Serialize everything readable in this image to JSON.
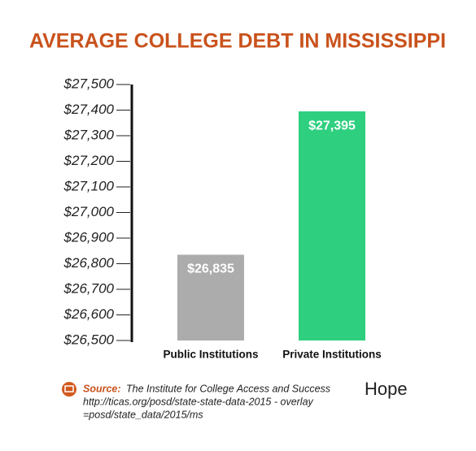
{
  "chart_data": {
    "type": "bar",
    "title": "AVERAGE COLLEGE DEBT IN MISSISSIPPI",
    "categories": [
      "Public Institutions",
      "Private Institutions"
    ],
    "values": [
      26835,
      27395
    ],
    "value_labels": [
      "$26,835",
      "$27,395"
    ],
    "colors": [
      "#acacac",
      "#2ecf7f"
    ],
    "ylim": [
      26500,
      27500
    ],
    "yticks": [
      {
        "value": 26500,
        "label": "$26,500"
      },
      {
        "value": 26600,
        "label": "$26,600"
      },
      {
        "value": 26700,
        "label": "$26,700"
      },
      {
        "value": 26800,
        "label": "$26,800"
      },
      {
        "value": 26900,
        "label": "$26,900"
      },
      {
        "value": 27000,
        "label": "$27,000"
      },
      {
        "value": 27100,
        "label": "$27,100"
      },
      {
        "value": 27200,
        "label": "$27,200"
      },
      {
        "value": 27300,
        "label": "$27,300"
      },
      {
        "value": 27400,
        "label": "$27,400"
      },
      {
        "value": 27500,
        "label": "$27,500"
      }
    ],
    "source_label": "Source:",
    "source_lines": [
      "The Institute for College Access and Success",
      "http://ticas.org/posd/state-state-data-2015 - overlay",
      "=posd/state_data/2015/ms"
    ],
    "logo": "Hope"
  }
}
